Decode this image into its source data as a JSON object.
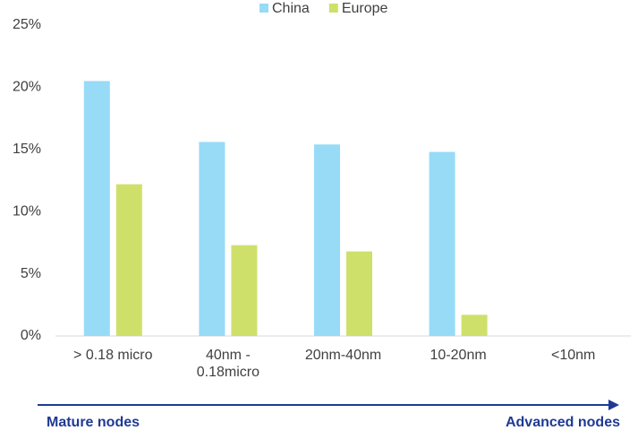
{
  "chart_data": {
    "type": "bar",
    "categories": [
      "> 0.18 micro",
      "40nm - 0.18micro",
      "20nm-40nm",
      "10-20nm",
      "<10nm"
    ],
    "series": [
      {
        "name": "China",
        "color": "#97dbf7",
        "values": [
          20.5,
          15.6,
          15.4,
          14.8,
          0
        ]
      },
      {
        "name": "Europe",
        "color": "#cfe06a",
        "values": [
          12.2,
          7.3,
          6.8,
          1.7,
          0
        ]
      }
    ],
    "ylim": [
      0,
      25
    ],
    "yticks": [
      {
        "value": 0,
        "label": "0%"
      },
      {
        "value": 5,
        "label": "5%"
      },
      {
        "value": 10,
        "label": "10%"
      },
      {
        "value": 15,
        "label": "15%"
      },
      {
        "value": 20,
        "label": "20%"
      },
      {
        "value": 25,
        "label": "25%"
      }
    ],
    "legend": "top",
    "annotations": [
      "Mature nodes",
      "Advanced nodes"
    ]
  }
}
